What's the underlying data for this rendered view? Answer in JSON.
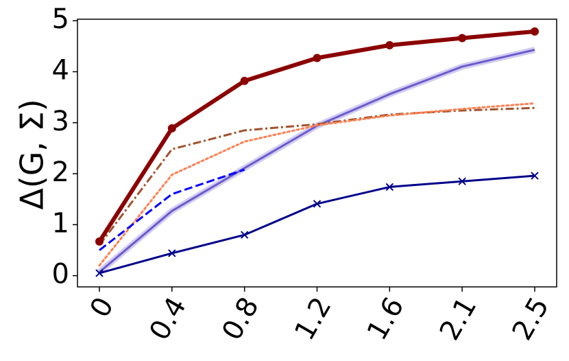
{
  "chart_data": {
    "type": "line",
    "ylabel": "Δ(G, Σ)",
    "categories": [
      "0",
      "0.4",
      "0.8",
      "1.2",
      "1.6",
      "2.1",
      "2.5"
    ],
    "ylim": [
      -0.22,
      5.03
    ],
    "yticks": [
      0,
      1,
      2,
      3,
      4,
      5
    ],
    "series": [
      {
        "color": "#8b0000",
        "style": "solid",
        "marker": "o",
        "linewidth": 6,
        "values": [
          0.67,
          2.89,
          3.82,
          4.27,
          4.52,
          4.66,
          4.79
        ]
      },
      {
        "color": "#6a5acd",
        "style": "solid",
        "band": true,
        "linewidth": 3,
        "values": [
          0.07,
          1.27,
          2.11,
          2.94,
          3.56,
          4.1,
          4.43
        ]
      },
      {
        "color": "#a0522d",
        "style": "dashdot",
        "linewidth": 3,
        "values": [
          0.6,
          2.48,
          2.85,
          2.97,
          3.16,
          3.24,
          3.29
        ]
      },
      {
        "color": "#ff7f50",
        "style": "dotted",
        "linewidth": 3,
        "values": [
          0.2,
          1.98,
          2.63,
          2.95,
          3.14,
          3.27,
          3.38
        ]
      },
      {
        "color": "#0000ff",
        "style": "dashed",
        "linewidth": 3,
        "values": [
          0.5,
          1.6,
          2.08,
          null,
          null,
          null,
          null
        ]
      },
      {
        "color": "#00008b",
        "style": "solid",
        "marker": "x",
        "linewidth": 3,
        "values": [
          0.05,
          0.44,
          0.8,
          1.41,
          1.74,
          1.85,
          1.96
        ]
      }
    ]
  }
}
